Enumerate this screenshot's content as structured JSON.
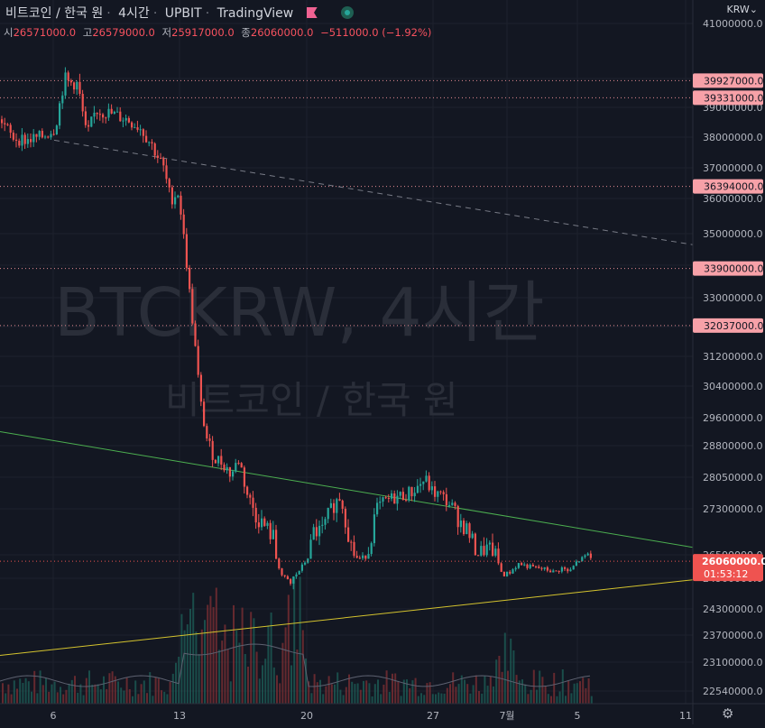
{
  "header": {
    "symbol": "비트코인 / 한국 원",
    "interval": "4시간",
    "exchange": "UPBIT",
    "source": "TradingView",
    "flag_icon": "flag-icon",
    "status_icon": "live-status-icon"
  },
  "ohlc": {
    "open_label": "시",
    "open": "26571000.0",
    "high_label": "고",
    "high": "26579000.0",
    "low_label": "저",
    "low": "25917000.0",
    "close_label": "종",
    "close": "26060000.0",
    "change": "−511000.0 (−1.92%)"
  },
  "currency_menu": "KRW",
  "watermark": {
    "title": "BTCKRW, 4시간",
    "subtitle": "비트코인 / 한국 원"
  },
  "colors": {
    "up": "#26a69a",
    "down": "#ef5350",
    "background": "#131722",
    "grid": "#1e222d",
    "price_label": "#f7a1a8",
    "last_price": "#ef5350",
    "green_line": "#4caf50",
    "yellow_line": "#d4c32e"
  },
  "chart_data": {
    "type": "candlestick",
    "x_ticks": [
      "6",
      "13",
      "20",
      "27",
      "7월",
      "5",
      "11"
    ],
    "y_ticks": [
      41000000,
      40000000,
      39000000,
      38000000,
      37000000,
      36000000,
      35000000,
      34000000,
      33000000,
      32000000,
      31200000,
      30400000,
      29600000,
      28800000,
      28050000,
      27300000,
      26500000,
      24900000,
      24300000,
      23700000,
      23100000,
      22540000
    ],
    "y_tick_labels": [
      "41000000.0",
      "40000000.0",
      "39000000.0",
      "38000000.0",
      "37000000.0",
      "36000000.0",
      "35000000.0",
      "34000000.0",
      "33000000.0",
      "32000000.0",
      "31200000.0",
      "30400000.0",
      "29600000.0",
      "28800000.0",
      "28050000.0",
      "27300000.0",
      "26500000.0",
      "24900000.0",
      "24300000.0",
      "23700000.0",
      "23100000.0",
      "22540000.0"
    ],
    "price_lines": [
      {
        "value": "39927000.0"
      },
      {
        "value": "39331000.0"
      },
      {
        "value": "36394000.0"
      },
      {
        "value": "33900000.0"
      },
      {
        "value": "32037000.0"
      }
    ],
    "last_price": {
      "value": "26060000.0",
      "countdown": "01:53:12"
    },
    "path_anchors": [
      [
        0,
        38600000
      ],
      [
        12,
        38000000
      ],
      [
        28,
        37900000
      ],
      [
        45,
        38000000
      ],
      [
        60,
        38300000
      ],
      [
        70,
        39900000
      ],
      [
        85,
        39800000
      ],
      [
        95,
        38000000
      ],
      [
        105,
        38900000
      ],
      [
        120,
        38800000
      ],
      [
        140,
        38600000
      ],
      [
        155,
        38300000
      ],
      [
        168,
        37700000
      ],
      [
        180,
        37000000
      ],
      [
        188,
        36000000
      ],
      [
        197,
        36200000
      ],
      [
        205,
        34300000
      ],
      [
        213,
        32000000
      ],
      [
        221,
        30000000
      ],
      [
        229,
        28900000
      ],
      [
        237,
        28500000
      ],
      [
        246,
        28400000
      ],
      [
        255,
        28100000
      ],
      [
        264,
        28500000
      ],
      [
        272,
        27700000
      ],
      [
        282,
        27200000
      ],
      [
        292,
        27000000
      ],
      [
        302,
        26800000
      ],
      [
        312,
        25000000
      ],
      [
        320,
        24700000
      ],
      [
        328,
        25200000
      ],
      [
        336,
        25900000
      ],
      [
        346,
        26900000
      ],
      [
        356,
        26900000
      ],
      [
        366,
        27300000
      ],
      [
        376,
        27600000
      ],
      [
        386,
        26800000
      ],
      [
        396,
        26200000
      ],
      [
        405,
        26400000
      ],
      [
        416,
        27300000
      ],
      [
        428,
        27500000
      ],
      [
        442,
        27600000
      ],
      [
        456,
        27700000
      ],
      [
        470,
        28000000
      ],
      [
        478,
        27700000
      ],
      [
        488,
        27600000
      ],
      [
        498,
        27400000
      ],
      [
        508,
        27100000
      ],
      [
        518,
        26900000
      ],
      [
        528,
        26500000
      ],
      [
        538,
        26600000
      ],
      [
        548,
        26500000
      ],
      [
        556,
        25100000
      ],
      [
        564,
        25300000
      ],
      [
        574,
        25900000
      ],
      [
        584,
        25700000
      ],
      [
        594,
        25600000
      ],
      [
        604,
        25500000
      ],
      [
        614,
        25300000
      ],
      [
        622,
        25600000
      ],
      [
        630,
        25300000
      ],
      [
        638,
        26000000
      ],
      [
        646,
        26300000
      ],
      [
        652,
        26550000
      ],
      [
        655,
        26060000
      ]
    ],
    "trend_lines": [
      {
        "style": "dashed",
        "from": [
          60,
          37900000
        ],
        "to": [
          768,
          34650000
        ]
      },
      {
        "style": "green",
        "from": [
          0,
          29200000
        ],
        "to": [
          768,
          26630000
        ]
      },
      {
        "style": "yellow",
        "from": [
          0,
          23250000
        ],
        "to": [
          768,
          24870000
        ]
      }
    ]
  }
}
